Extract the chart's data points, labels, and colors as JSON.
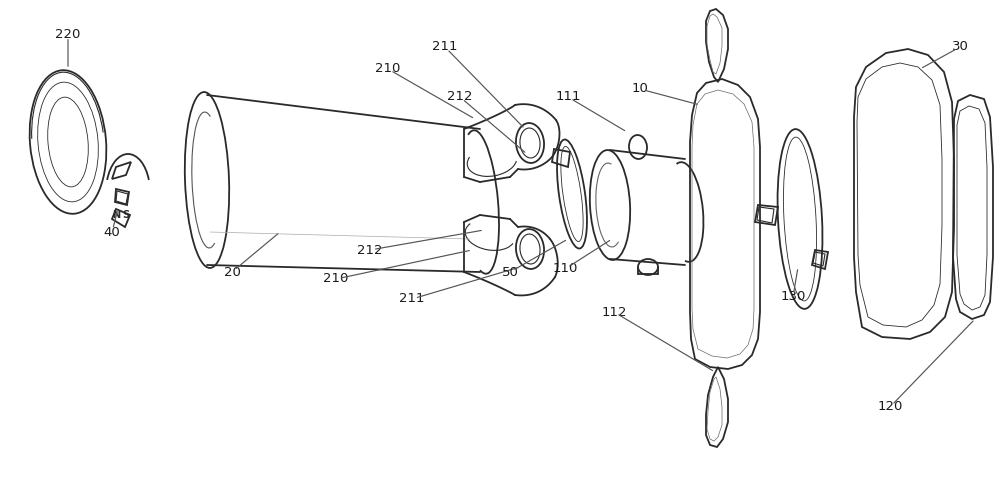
{
  "bg_color": "#ffffff",
  "line_color": "#2a2a2a",
  "label_color": "#1a1a1a",
  "figsize": [
    10.0,
    4.87
  ],
  "dpi": 100
}
